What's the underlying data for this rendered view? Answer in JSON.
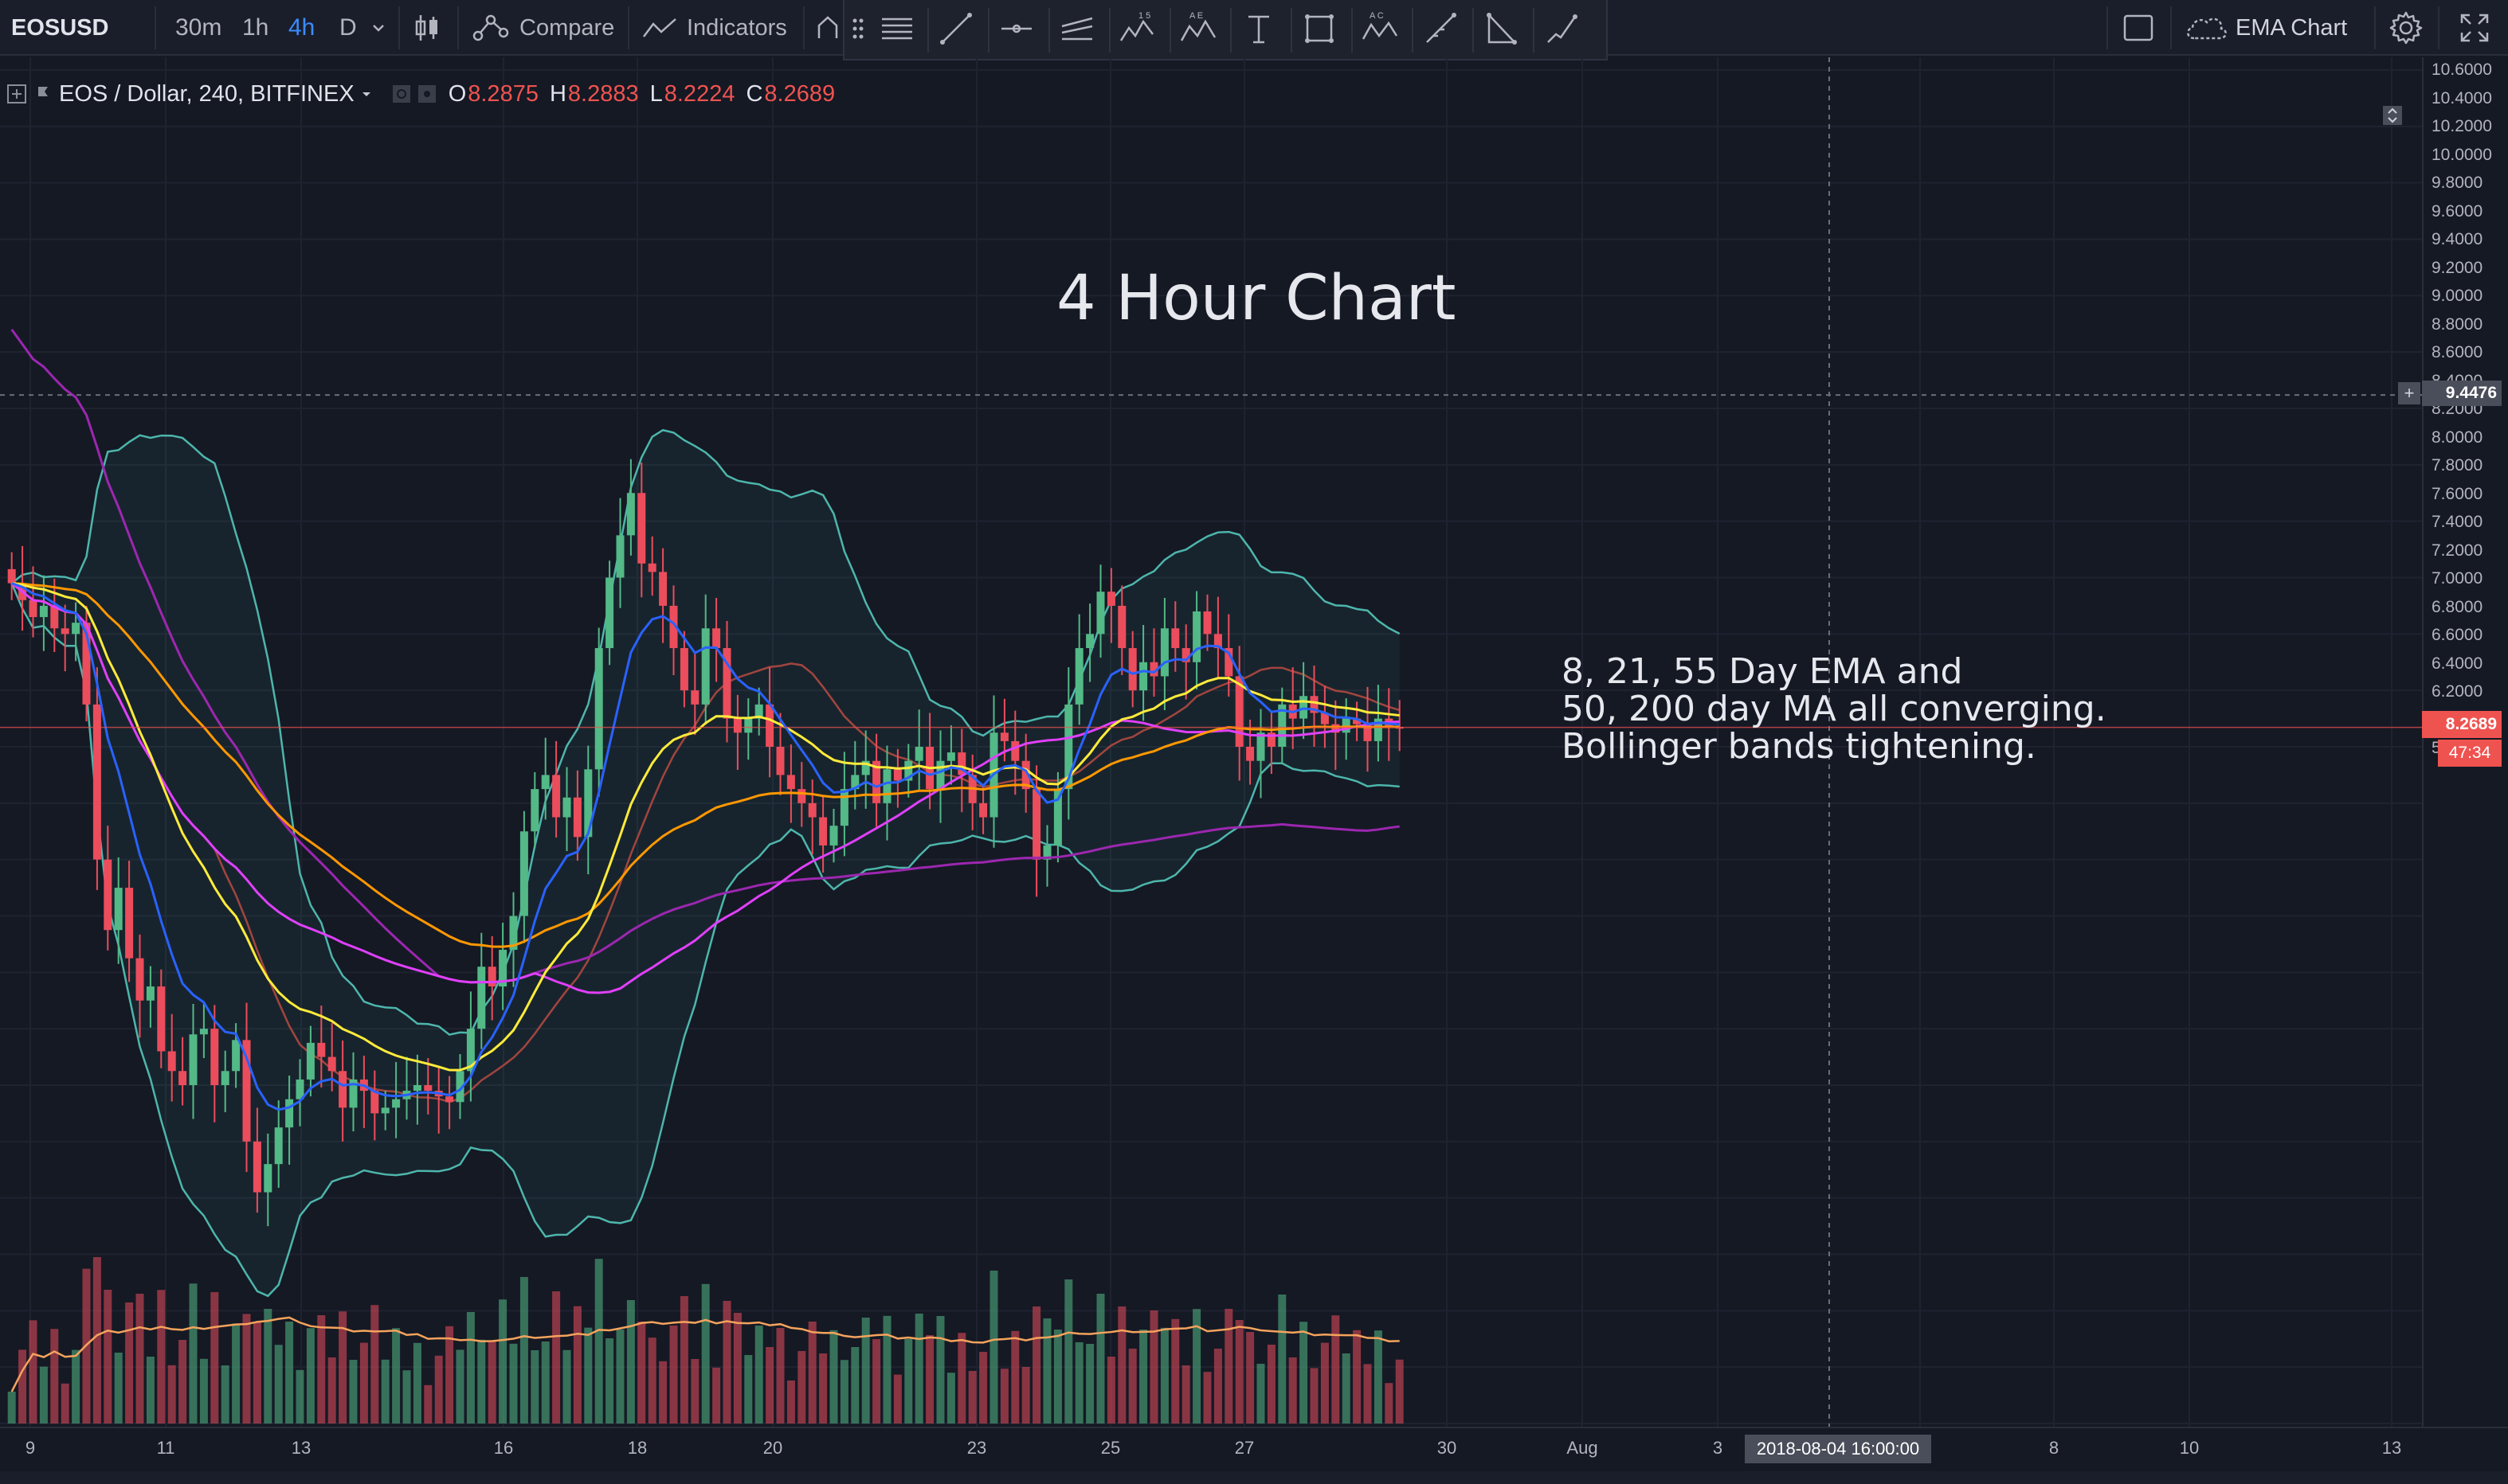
{
  "toolbar": {
    "symbol": "EOSUSD",
    "intervals": [
      "30m",
      "1h",
      "4h",
      "D"
    ],
    "active_interval": "4h",
    "compare_label": "Compare",
    "indicators_label": "Indicators",
    "layout_name": "EMA Chart"
  },
  "legend": {
    "title": "EOS / Dollar, 240, BITFINEX",
    "open_key": "O",
    "open": "8.2875",
    "high_key": "H",
    "high": "8.2883",
    "low_key": "L",
    "low": "8.2224",
    "close_key": "C",
    "close": "8.2689"
  },
  "annotations": {
    "title": "4 Hour Chart",
    "note_line1": "8, 21, 55 Day EMA and",
    "note_line2": "50, 200 day MA all converging.",
    "note_line3": "Bollinger bands tightening."
  },
  "price_axis": {
    "labels": [
      "10.6000",
      "10.4000",
      "10.2000",
      "10.0000",
      "9.8000",
      "9.6000",
      "9.4000",
      "9.2000",
      "9.0000",
      "8.8000",
      "8.6000",
      "8.4000",
      "8.2000",
      "8.0000",
      "7.8000",
      "7.6000",
      "7.4000",
      "7.2000",
      "7.0000",
      "6.8000",
      "6.6000",
      "6.4000",
      "6.2000",
      "6.0000",
      "5.8000"
    ],
    "crosshair_price": "9.4476",
    "last_price": "8.2689",
    "countdown": "47:34"
  },
  "time_axis": {
    "labels": [
      "9",
      "11",
      "13",
      "16",
      "18",
      "20",
      "23",
      "25",
      "27",
      "30",
      "Aug",
      "3",
      "6",
      "8",
      "10",
      "13"
    ],
    "crosshair_time": "2018-08-04 16:00:00"
  },
  "colors": {
    "background": "#151924",
    "up_candle": "#53b987",
    "down_candle": "#eb4d5c",
    "ema8": "#2962ff",
    "ema21": "#ffeb3b",
    "ema55": "#ff9800",
    "ma50": "#e040fb",
    "ma200": "#9c27b0",
    "bollinger": "#4db6ac"
  },
  "chart_data": {
    "type": "candlestick",
    "symbol": "EOS / Dollar",
    "interval": "240",
    "exchange": "BITFINEX",
    "ylim": [
      5.8,
      10.6
    ],
    "x_ticks": [
      "9",
      "11",
      "13",
      "16",
      "18",
      "20",
      "23",
      "25",
      "27",
      "30"
    ],
    "indicators": [
      "EMA 8",
      "EMA 21",
      "EMA 55",
      "MA 50",
      "MA 200",
      "Bollinger Bands",
      "Volume",
      "Volume MA"
    ],
    "close_series": [
      8.78,
      8.72,
      8.66,
      8.7,
      8.62,
      8.6,
      8.64,
      8.35,
      7.8,
      7.55,
      7.7,
      7.45,
      7.3,
      7.35,
      7.12,
      7.05,
      7.0,
      7.18,
      7.2,
      7.0,
      7.05,
      7.16,
      6.8,
      6.62,
      6.72,
      6.85,
      6.95,
      7.02,
      7.15,
      7.1,
      7.05,
      6.92,
      7.02,
      6.98,
      6.9,
      6.92,
      6.95,
      6.98,
      7.0,
      6.98,
      6.96,
      6.94,
      7.05,
      7.2,
      7.42,
      7.35,
      7.48,
      7.6,
      7.9,
      8.05,
      8.1,
      7.95,
      8.02,
      7.88,
      8.12,
      8.55,
      8.8,
      8.95,
      9.1,
      8.85,
      8.82,
      8.7,
      8.55,
      8.4,
      8.35,
      8.62,
      8.55,
      8.3,
      8.25,
      8.3,
      8.35,
      8.2,
      8.1,
      8.05,
      8.0,
      7.95,
      7.85,
      7.92,
      8.05,
      8.1,
      8.15,
      8.0,
      8.12,
      8.08,
      8.15,
      8.2,
      8.05,
      8.15,
      8.18,
      8.1,
      8.0,
      7.95,
      8.25,
      8.22,
      8.15,
      8.05,
      7.8,
      7.85,
      8.05,
      8.35,
      8.55,
      8.6,
      8.75,
      8.7,
      8.55,
      8.4,
      8.5,
      8.45,
      8.62,
      8.55,
      8.5,
      8.68,
      8.6,
      8.55,
      8.45,
      8.2,
      8.15,
      8.25,
      8.2,
      8.35,
      8.3,
      8.38,
      8.32,
      8.28,
      8.25,
      8.3,
      8.28,
      8.22,
      8.3,
      8.27,
      8.2689
    ]
  }
}
